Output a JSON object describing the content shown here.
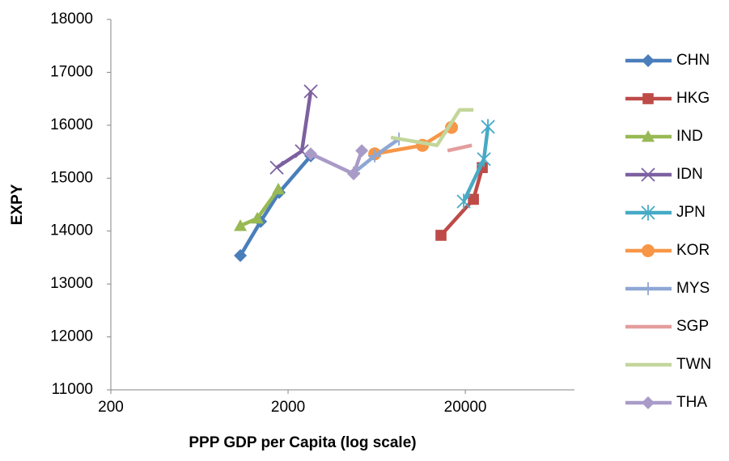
{
  "chart_data": {
    "type": "line",
    "x_label": "PPP GDP per Capita (log scale)",
    "y_label": "EXPY",
    "xscale": "log",
    "xlim": [
      200,
      82600
    ],
    "xticks": [
      200,
      2000,
      20000
    ],
    "ylim": [
      11000,
      18000
    ],
    "yticks": [
      11000,
      12000,
      13000,
      14000,
      15000,
      16000,
      17000,
      18000
    ],
    "grid": false,
    "legend": "right",
    "series": [
      {
        "name": "CHN",
        "color": "#4a7ebb",
        "marker": "diamond",
        "x": [
          1076,
          1400,
          1782,
          2685
        ],
        "values": [
          13537,
          14180,
          14730,
          15420
        ]
      },
      {
        "name": "HKG",
        "color": "#be4b48",
        "marker": "square",
        "x": [
          14580,
          22230,
          24940
        ],
        "values": [
          13920,
          14600,
          15200
        ]
      },
      {
        "name": "IND",
        "color": "#98b954",
        "marker": "triangle",
        "x": [
          1076,
          1340,
          1762
        ],
        "values": [
          14100,
          14240,
          14790
        ]
      },
      {
        "name": "IDN",
        "color": "#7d60a0",
        "marker": "x",
        "x": [
          1726,
          2390,
          2685
        ],
        "values": [
          15200,
          15510,
          16640
        ]
      },
      {
        "name": "JPN",
        "color": "#46aac5",
        "marker": "star",
        "x": [
          19590,
          25470,
          26840
        ],
        "values": [
          14560,
          15360,
          15970
        ]
      },
      {
        "name": "KOR",
        "color": "#f79646",
        "marker": "circle",
        "x": [
          6166,
          11460,
          16720
        ],
        "values": [
          15460,
          15620,
          15960
        ]
      },
      {
        "name": "MYS",
        "color": "#8ea7d4",
        "marker": "plus",
        "x": [
          4689,
          6166,
          8450
        ],
        "values": [
          15100,
          15420,
          15740
        ]
      },
      {
        "name": "SGP",
        "color": "#e39d9c",
        "marker": "none",
        "x": [
          15880,
          21770
        ],
        "values": [
          15520,
          15620
        ]
      },
      {
        "name": "TWN",
        "color": "#c3d69b",
        "marker": "none",
        "x": [
          7605,
          13840,
          18580,
          22230
        ],
        "values": [
          15770,
          15620,
          16290,
          16290
        ]
      },
      {
        "name": "THA",
        "color": "#a99bc8",
        "marker": "diamond",
        "x": [
          2685,
          4689,
          5210
        ],
        "values": [
          15460,
          15080,
          15520
        ]
      }
    ]
  }
}
